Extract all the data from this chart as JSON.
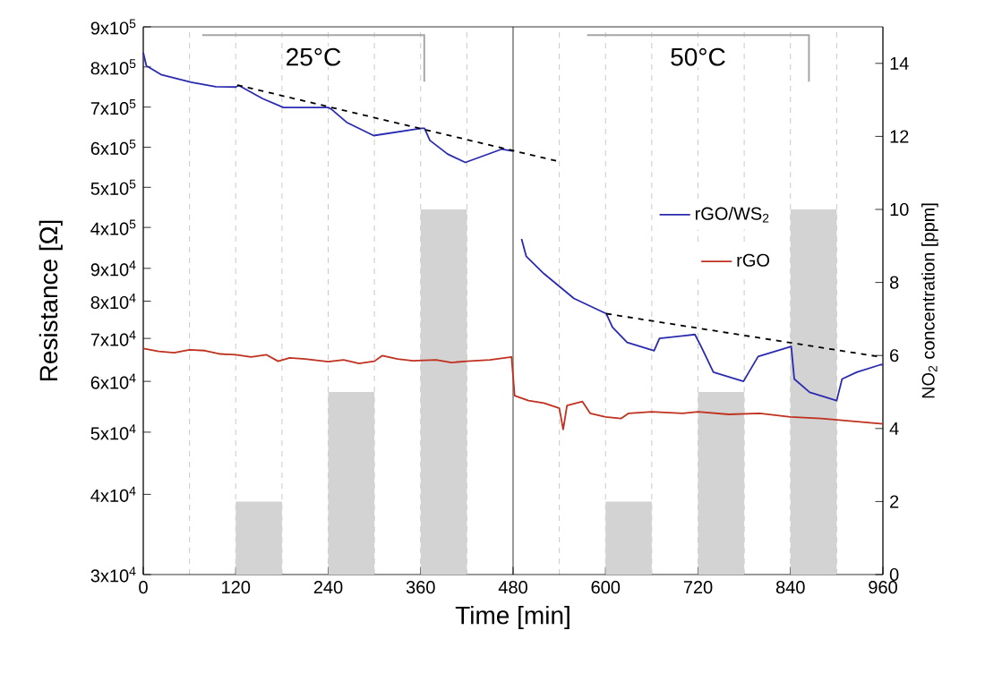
{
  "chart_data": [
    {
      "type": "bar",
      "xlabel": "Time [min]",
      "ylabel": "Resistance [Ω]",
      "y2label": "NO$_{2}$ concentration [ppm]",
      "annotations": [
        "25°C",
        "50°C"
      ],
      "x": [
        150,
        270,
        390,
        630,
        750,
        870
      ],
      "series": [
        {
          "color": "#d3d3d3",
          "values": [
            2,
            5,
            10,
            2,
            5,
            10
          ],
          "axis": "y2"
        }
      ],
      "xlim": [
        0,
        960
      ],
      "xticks": [
        0,
        120,
        240,
        360,
        480,
        600,
        720,
        840,
        960
      ],
      "y2lim": [
        0,
        15
      ],
      "y2ticks": [
        0,
        2,
        4,
        6,
        8,
        10,
        12,
        14
      ],
      "ref_lines": [
        {
          "axis": "x",
          "value": 60,
          "color": "#bbbbbb",
          "line_style": "dashed"
        },
        {
          "axis": "x",
          "value": 120,
          "color": "#bbbbbb",
          "line_style": "dashed"
        },
        {
          "axis": "x",
          "value": 180,
          "color": "#bbbbbb",
          "line_style": "dashed"
        },
        {
          "axis": "x",
          "value": 240,
          "color": "#bbbbbb",
          "line_style": "dashed"
        },
        {
          "axis": "x",
          "value": 300,
          "color": "#bbbbbb",
          "line_style": "dashed"
        },
        {
          "axis": "x",
          "value": 360,
          "color": "#bbbbbb",
          "line_style": "dashed"
        },
        {
          "axis": "x",
          "value": 420,
          "color": "#bbbbbb",
          "line_style": "dashed"
        },
        {
          "axis": "x",
          "value": 480,
          "color": "#000000",
          "line_style": "solid"
        },
        {
          "axis": "x",
          "value": 540,
          "color": "#bbbbbb",
          "line_style": "dashed"
        },
        {
          "axis": "x",
          "value": 600,
          "color": "#bbbbbb",
          "line_style": "dashed"
        },
        {
          "axis": "x",
          "value": 660,
          "color": "#bbbbbb",
          "line_style": "dashed"
        },
        {
          "axis": "x",
          "value": 720,
          "color": "#bbbbbb",
          "line_style": "dashed"
        },
        {
          "axis": "x",
          "value": 780,
          "color": "#bbbbbb",
          "line_style": "dashed"
        },
        {
          "axis": "x",
          "value": 840,
          "color": "#bbbbbb",
          "line_style": "dashed"
        },
        {
          "axis": "x",
          "value": 900,
          "color": "#bbbbbb",
          "line_style": "dashed"
        }
      ]
    },
    {
      "type": "line",
      "xlim": [
        0,
        960
      ],
      "ylim": [
        378000,
        900000
      ],
      "tick_labels": "y",
      "legend": "bottom right",
      "yticks": [
        {
          "value": 400000,
          "label": "4x10$^{5}$"
        },
        {
          "value": 500000,
          "label": "5x10$^{5}$"
        },
        {
          "value": 600000,
          "label": "6x10$^{5}$"
        },
        {
          "value": 700000,
          "label": "7x10$^{5}$"
        },
        {
          "value": 800000,
          "label": "8x10$^{5}$"
        },
        {
          "value": 900000,
          "label": "9x10$^{5}$"
        }
      ],
      "series": [
        {
          "name": "rGO/WS$_{2}$",
          "color": "#2a2ab0",
          "x": [
            0,
            4,
            23,
            62,
            94,
            120,
            124,
            155,
            182,
            240,
            244,
            264,
            299,
            361,
            365,
            372,
            395,
            418,
            465,
            480
          ],
          "values": [
            836000,
            803000,
            781000,
            762000,
            751000,
            750000,
            754000,
            721000,
            699000,
            699000,
            695000,
            662000,
            629000,
            647000,
            647000,
            617000,
            583000,
            562000,
            595000,
            590000
          ]
        },
        {
          "color": "#000000",
          "line_style": "dashed",
          "x": [
            122,
            538
          ],
          "values": [
            755000,
            565000
          ]
        }
      ]
    },
    {
      "type": "line",
      "log": true,
      "xlim": [
        0,
        960
      ],
      "ylim": [
        30000,
        101000
      ],
      "tick_labels": "y",
      "legend": "top right",
      "yticks": [
        {
          "value": 30000,
          "label": "3x10$^{4}$"
        },
        {
          "value": 40000,
          "label": "4x10$^{4}$"
        },
        {
          "value": 50000,
          "label": "5x10$^{4}$"
        },
        {
          "value": 60000,
          "label": "6x10$^{4}$"
        },
        {
          "value": 70000,
          "label": "7x10$^{4}$"
        },
        {
          "value": 80000,
          "label": "8x10$^{4}$"
        },
        {
          "value": 90000,
          "label": "9x10$^{4}$"
        }
      ],
      "series": [
        {
          "name": "rGO",
          "color": "#c0301e",
          "x": [
            0,
            20,
            40,
            60,
            80,
            100,
            120,
            140,
            160,
            175,
            190,
            210,
            240,
            260,
            280,
            300,
            310,
            330,
            350,
            380,
            400,
            420,
            450,
            478,
            482,
            500,
            520,
            540,
            545,
            550,
            570,
            580,
            600,
            620,
            630,
            660,
            700,
            720,
            760,
            800,
            840,
            880,
            920,
            960
          ],
          "values": [
            67500,
            66800,
            66500,
            67200,
            67000,
            66200,
            66000,
            65500,
            66000,
            64500,
            65300,
            65000,
            64400,
            64800,
            64000,
            64500,
            65800,
            65000,
            64600,
            64800,
            64200,
            64500,
            64800,
            65500,
            57000,
            56000,
            55500,
            54500,
            50500,
            55000,
            55800,
            53500,
            52800,
            52500,
            53500,
            53800,
            53500,
            53800,
            53300,
            53500,
            52800,
            52500,
            52000,
            51500
          ]
        },
        {
          "color": "#2a2ab0",
          "x": [
            491,
            497,
            520,
            559,
            601,
            609,
            628,
            663,
            670,
            716,
            724,
            740,
            779,
            798,
            841,
            845,
            865,
            900,
            907,
            926,
            957,
            960
          ],
          "values": [
            100000,
            94000,
            88300,
            80800,
            76500,
            72900,
            69000,
            67000,
            70000,
            71000,
            68000,
            62000,
            60000,
            65600,
            68000,
            60500,
            57700,
            56000,
            60500,
            62000,
            63700,
            63700
          ]
        },
        {
          "color": "#000000",
          "line_style": "dashed",
          "x": [
            601,
            957
          ],
          "values": [
            76500,
            65500
          ]
        }
      ]
    }
  ]
}
